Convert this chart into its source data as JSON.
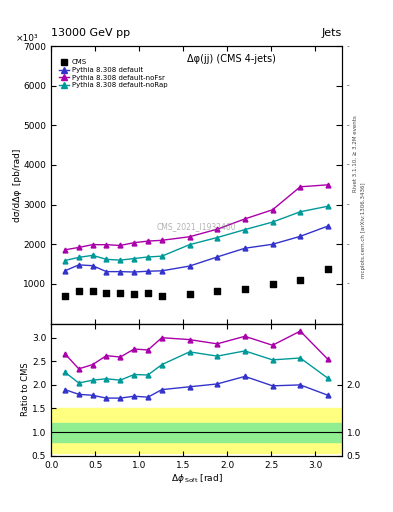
{
  "title_left": "13000 GeV pp",
  "title_right": "Jets",
  "plot_title": "Δφ(jj) (CMS 4-jets)",
  "xlabel": "Δφ rm Soft [rad]",
  "ylabel_main": "dσ/dΔφ [pb/rad]",
  "ylabel_ratio": "Ratio to CMS",
  "ylabel_main_prefix": "×10³",
  "watermark": "CMS_2021_I1932460",
  "right_label": "mcplots.cern.ch [arXiv:1306.3436]",
  "right_label2": "Rivet 3.1.10, ≥ 3.2M events",
  "cms_x": [
    0.157,
    0.314,
    0.471,
    0.628,
    0.785,
    0.942,
    1.099,
    1.257,
    1.571,
    1.885,
    2.199,
    2.513,
    2.827,
    3.142
  ],
  "cms_y": [
    700,
    820,
    820,
    760,
    760,
    740,
    760,
    700,
    740,
    830,
    870,
    1010,
    1100,
    1380
  ],
  "pythia_default_x": [
    0.157,
    0.314,
    0.471,
    0.628,
    0.785,
    0.942,
    1.099,
    1.257,
    1.571,
    1.885,
    2.199,
    2.513,
    2.827,
    3.142
  ],
  "pythia_default_y": [
    1330,
    1480,
    1460,
    1310,
    1310,
    1300,
    1320,
    1330,
    1450,
    1680,
    1900,
    2000,
    2200,
    2460
  ],
  "pythia_noFsr_x": [
    0.157,
    0.314,
    0.471,
    0.628,
    0.785,
    0.942,
    1.099,
    1.257,
    1.571,
    1.885,
    2.199,
    2.513,
    2.827,
    3.142
  ],
  "pythia_noFsr_y": [
    1860,
    1920,
    1990,
    1990,
    1970,
    2040,
    2080,
    2100,
    2190,
    2380,
    2640,
    2870,
    3450,
    3500
  ],
  "pythia_noRap_x": [
    0.157,
    0.314,
    0.471,
    0.628,
    0.785,
    0.942,
    1.099,
    1.257,
    1.571,
    1.885,
    2.199,
    2.513,
    2.827,
    3.142
  ],
  "pythia_noRap_y": [
    1590,
    1670,
    1720,
    1620,
    1600,
    1640,
    1680,
    1700,
    1990,
    2170,
    2370,
    2560,
    2820,
    2960
  ],
  "ratio_default_y": [
    1.9,
    1.8,
    1.78,
    1.72,
    1.72,
    1.76,
    1.74,
    1.9,
    1.96,
    2.02,
    2.18,
    1.98,
    2.0,
    1.78
  ],
  "ratio_noFsr_y": [
    2.66,
    2.34,
    2.43,
    2.62,
    2.59,
    2.76,
    2.74,
    3.0,
    2.96,
    2.87,
    3.03,
    2.84,
    3.14,
    2.54
  ],
  "ratio_noRap_y": [
    2.27,
    2.04,
    2.1,
    2.13,
    2.1,
    2.22,
    2.21,
    2.43,
    2.7,
    2.61,
    2.72,
    2.53,
    2.57,
    2.14
  ],
  "green_band_low": 0.8,
  "green_band_high": 1.2,
  "yellow_band_low": 0.55,
  "yellow_band_high": 1.5,
  "color_cms": "#000000",
  "color_default": "#3333cc",
  "color_noFsr": "#aa00aa",
  "color_noRap": "#009999",
  "ylim_main": [
    0,
    7000
  ],
  "yticks_main": [
    1000,
    2000,
    3000,
    4000,
    5000,
    6000,
    7000
  ],
  "ylim_ratio": [
    0.5,
    3.3
  ],
  "yticks_ratio": [
    0.5,
    1.0,
    1.5,
    2.0,
    2.5,
    3.0
  ],
  "yticks_ratio_right": [
    0.5,
    1.0,
    2.0
  ],
  "xlim": [
    0,
    3.3
  ]
}
